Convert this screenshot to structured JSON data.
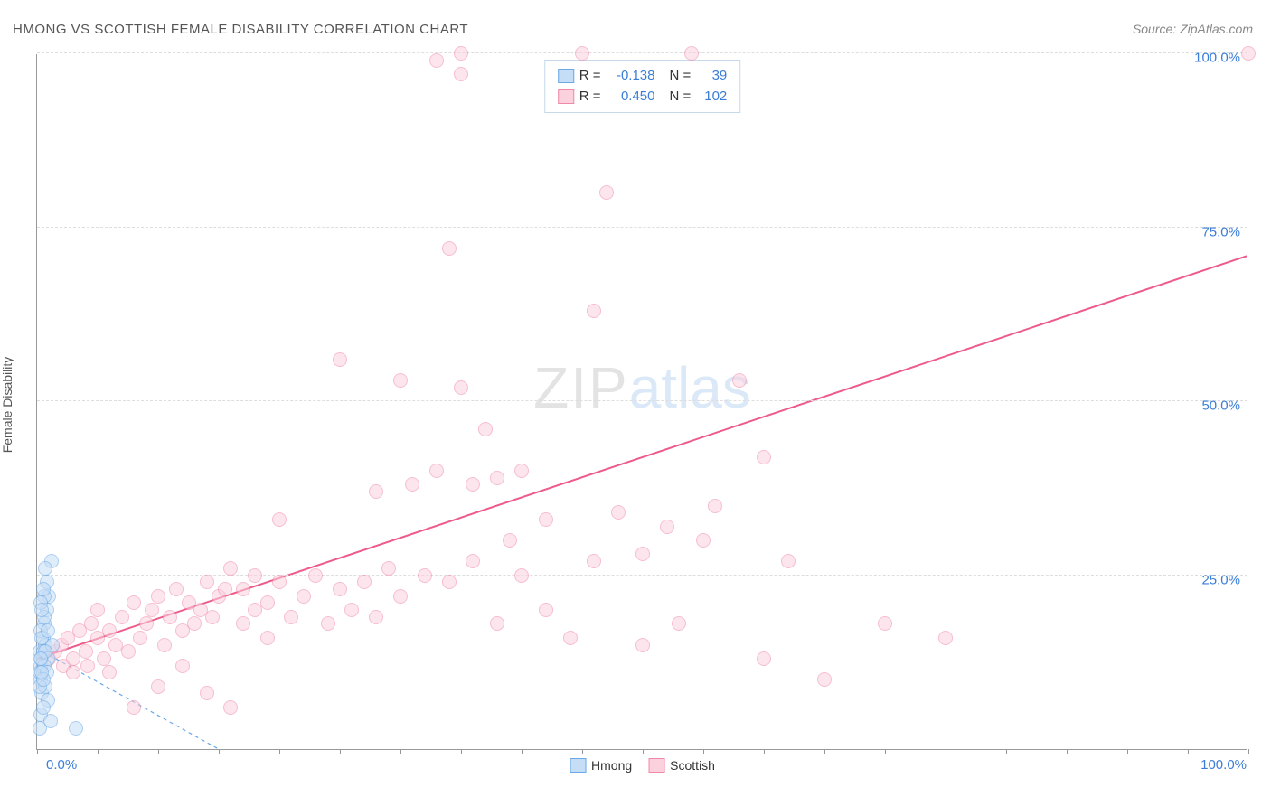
{
  "title": "HMONG VS SCOTTISH FEMALE DISABILITY CORRELATION CHART",
  "source": "Source: ZipAtlas.com",
  "y_axis_label": "Female Disability",
  "watermark": {
    "part1": "ZIP",
    "part2": "atlas"
  },
  "chart": {
    "type": "scatter",
    "xlim": [
      0,
      100
    ],
    "ylim": [
      0,
      100
    ],
    "x_tick_label_left": "0.0%",
    "x_tick_label_right": "100.0%",
    "y_ticks": [
      25,
      50,
      75,
      100
    ],
    "y_tick_labels": [
      "25.0%",
      "50.0%",
      "75.0%",
      "100.0%"
    ],
    "x_minor_ticks": [
      0,
      5,
      10,
      15,
      20,
      25,
      30,
      35,
      40,
      45,
      50,
      55,
      60,
      65,
      70,
      75,
      80,
      85,
      90,
      95,
      100
    ],
    "background_color": "#ffffff",
    "grid_color": "#dddddd",
    "axis_color": "#999999",
    "tick_label_color": "#3b7dd8",
    "point_radius": 8,
    "series": [
      {
        "name": "Hmong",
        "fill": "#c5ddf5",
        "stroke": "#6aa8e8",
        "fill_opacity": 0.55,
        "R": "-0.138",
        "N": "39",
        "trend": {
          "x1": 0,
          "y1": 14.5,
          "x2": 15,
          "y2": 0,
          "dash": "4 4",
          "width": 1.2,
          "color": "#6aa8e8"
        },
        "points": [
          [
            0.2,
            14
          ],
          [
            0.3,
            12
          ],
          [
            0.5,
            16
          ],
          [
            0.4,
            13
          ],
          [
            0.6,
            18
          ],
          [
            0.3,
            10
          ],
          [
            0.7,
            15
          ],
          [
            0.8,
            20
          ],
          [
            0.2,
            11
          ],
          [
            0.5,
            14
          ],
          [
            0.9,
            13
          ],
          [
            0.3,
            17
          ],
          [
            1.0,
            22
          ],
          [
            1.2,
            27
          ],
          [
            0.4,
            8
          ],
          [
            0.6,
            12
          ],
          [
            0.7,
            9
          ],
          [
            0.3,
            5
          ],
          [
            0.9,
            7
          ],
          [
            0.2,
            3
          ],
          [
            1.1,
            4
          ],
          [
            0.5,
            6
          ],
          [
            0.8,
            11
          ],
          [
            1.3,
            15
          ],
          [
            0.4,
            16
          ],
          [
            0.6,
            19
          ],
          [
            0.7,
            14
          ],
          [
            0.3,
            13
          ],
          [
            0.2,
            9
          ],
          [
            0.5,
            10
          ],
          [
            0.9,
            17
          ],
          [
            0.4,
            11
          ],
          [
            3.2,
            3
          ],
          [
            0.8,
            24
          ],
          [
            0.6,
            22
          ],
          [
            0.3,
            21
          ],
          [
            0.5,
            23
          ],
          [
            0.7,
            26
          ],
          [
            0.4,
            20
          ]
        ]
      },
      {
        "name": "Scottish",
        "fill": "#fbd1de",
        "stroke": "#f089a9",
        "fill_opacity": 0.55,
        "R": "0.450",
        "N": "102",
        "trend": {
          "x1": 0,
          "y1": 13,
          "x2": 100,
          "y2": 71,
          "dash": "none",
          "width": 2,
          "color": "#ee5a8a"
        },
        "points": [
          [
            1,
            13
          ],
          [
            1.5,
            14
          ],
          [
            2,
            15
          ],
          [
            2.2,
            12
          ],
          [
            2.5,
            16
          ],
          [
            3,
            13
          ],
          [
            3,
            11
          ],
          [
            3.5,
            17
          ],
          [
            4,
            14
          ],
          [
            4.2,
            12
          ],
          [
            4.5,
            18
          ],
          [
            5,
            16
          ],
          [
            5,
            20
          ],
          [
            5.5,
            13
          ],
          [
            6,
            11
          ],
          [
            6,
            17
          ],
          [
            6.5,
            15
          ],
          [
            7,
            19
          ],
          [
            7.5,
            14
          ],
          [
            8,
            21
          ],
          [
            8,
            6
          ],
          [
            8.5,
            16
          ],
          [
            9,
            18
          ],
          [
            9.5,
            20
          ],
          [
            10,
            22
          ],
          [
            10,
            9
          ],
          [
            10.5,
            15
          ],
          [
            11,
            19
          ],
          [
            11.5,
            23
          ],
          [
            12,
            17
          ],
          [
            12,
            12
          ],
          [
            12.5,
            21
          ],
          [
            13,
            18
          ],
          [
            13.5,
            20
          ],
          [
            14,
            24
          ],
          [
            14,
            8
          ],
          [
            14.5,
            19
          ],
          [
            15,
            22
          ],
          [
            15.5,
            23
          ],
          [
            16,
            26
          ],
          [
            16,
            6
          ],
          [
            17,
            18
          ],
          [
            17,
            23
          ],
          [
            18,
            20
          ],
          [
            18,
            25
          ],
          [
            19,
            21
          ],
          [
            19,
            16
          ],
          [
            20,
            24
          ],
          [
            20,
            33
          ],
          [
            21,
            19
          ],
          [
            22,
            22
          ],
          [
            23,
            25
          ],
          [
            24,
            18
          ],
          [
            25,
            56
          ],
          [
            25,
            23
          ],
          [
            26,
            20
          ],
          [
            27,
            24
          ],
          [
            28,
            37
          ],
          [
            28,
            19
          ],
          [
            29,
            26
          ],
          [
            30,
            53
          ],
          [
            30,
            22
          ],
          [
            31,
            38
          ],
          [
            32,
            25
          ],
          [
            33,
            40
          ],
          [
            33,
            99
          ],
          [
            34,
            24
          ],
          [
            34,
            72
          ],
          [
            35,
            52
          ],
          [
            35,
            97
          ],
          [
            35,
            101
          ],
          [
            36,
            38
          ],
          [
            36,
            27
          ],
          [
            37,
            46
          ],
          [
            38,
            39
          ],
          [
            38,
            18
          ],
          [
            39,
            30
          ],
          [
            40,
            25
          ],
          [
            40,
            40
          ],
          [
            42,
            20
          ],
          [
            42,
            33
          ],
          [
            44,
            16
          ],
          [
            45,
            101
          ],
          [
            46,
            63
          ],
          [
            46,
            27
          ],
          [
            47,
            80
          ],
          [
            48,
            34
          ],
          [
            50,
            15
          ],
          [
            50,
            28
          ],
          [
            52,
            32
          ],
          [
            53,
            18
          ],
          [
            54,
            101
          ],
          [
            55,
            30
          ],
          [
            56,
            35
          ],
          [
            58,
            53
          ],
          [
            60,
            13
          ],
          [
            60,
            42
          ],
          [
            62,
            27
          ],
          [
            65,
            10
          ],
          [
            70,
            18
          ],
          [
            75,
            16
          ],
          [
            100,
            101
          ]
        ]
      }
    ],
    "legend_bottom": [
      {
        "label": "Hmong",
        "fill": "#c5ddf5",
        "stroke": "#6aa8e8"
      },
      {
        "label": "Scottish",
        "fill": "#fbd1de",
        "stroke": "#f089a9"
      }
    ]
  }
}
